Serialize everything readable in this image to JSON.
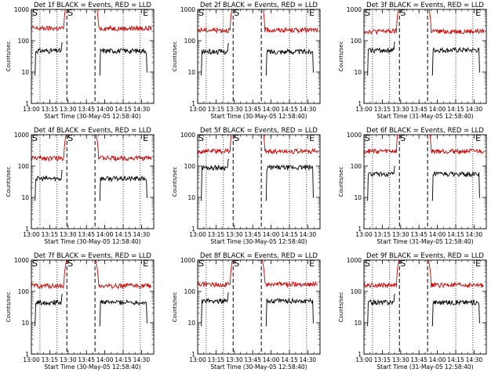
{
  "chart_data": {
    "type": "line",
    "layout": "3x3 grid",
    "xlabel_ticks": [
      "13:00",
      "13:15",
      "13:30",
      "13:45",
      "14:00",
      "14:15",
      "14:30"
    ],
    "x_range_minutes": [
      0,
      100
    ],
    "ylabel": "Counts/sec",
    "y_scale": "log",
    "y_range": [
      1,
      1000
    ],
    "y_ticks": [
      "1",
      "10",
      "100",
      "1000"
    ],
    "legend_note": "BLACK = Events, RED = LLD",
    "markers": {
      "start": "S",
      "end": "E"
    },
    "panels": [
      {
        "title": "Det 1f BLACK = Events, RED = LLD",
        "subtitle": "Start Time (30-May-05 12:58:40)",
        "start_min": 0,
        "end_min": 93,
        "lines_dotted_min": [
          7,
          21,
          75,
          89
        ],
        "lines_dashed_min": [
          29,
          52
        ],
        "series": [
          {
            "name": "Events",
            "color": "#000000",
            "level": 48,
            "t_on": 2.5,
            "t_off": 25.5,
            "t_on2": 55.5,
            "t_off2": 95
          },
          {
            "name": "LLD",
            "color": "#cc0000",
            "level": 250,
            "t_on": 0,
            "t_off": 29,
            "t_on2": 52,
            "t_off2": 98
          }
        ]
      },
      {
        "title": "Det 2f BLACK = Events, RED = LLD",
        "subtitle": "Start Time (30-May-05 12:58:40)",
        "start_min": 0,
        "end_min": 93,
        "lines_dotted_min": [
          7,
          21,
          75,
          89
        ],
        "lines_dashed_min": [
          29,
          52
        ],
        "series": [
          {
            "name": "Events",
            "color": "#000000",
            "level": 45,
            "t_on": 2.5,
            "t_off": 25.5,
            "t_on2": 55.5,
            "t_off2": 95
          },
          {
            "name": "LLD",
            "color": "#cc0000",
            "level": 220,
            "t_on": 0,
            "t_off": 29,
            "t_on2": 52,
            "t_off2": 98
          }
        ]
      },
      {
        "title": "Det 3f BLACK = Events, RED = LLD",
        "subtitle": "Start Time (31-May-05 12:58:40)",
        "start_min": 0,
        "end_min": 93,
        "lines_dotted_min": [
          7,
          21,
          75,
          89
        ],
        "lines_dashed_min": [
          29,
          52
        ],
        "series": [
          {
            "name": "Events",
            "color": "#000000",
            "level": 50,
            "t_on": 2.5,
            "t_off": 25.5,
            "t_on2": 55.5,
            "t_off2": 95
          },
          {
            "name": "LLD",
            "color": "#cc0000",
            "level": 200,
            "t_on": 0,
            "t_off": 29,
            "t_on2": 52,
            "t_off2": 98
          }
        ]
      },
      {
        "title": "Det 4f BLACK = Events, RED = LLD",
        "subtitle": "Start Time (30-May-05 12:58:40)",
        "start_min": 0,
        "end_min": 93,
        "lines_dotted_min": [
          7,
          21,
          75,
          89
        ],
        "lines_dashed_min": [
          29,
          52
        ],
        "series": [
          {
            "name": "Events",
            "color": "#000000",
            "level": 40,
            "t_on": 2.5,
            "t_off": 25.5,
            "t_on2": 55.5,
            "t_off2": 95
          },
          {
            "name": "LLD",
            "color": "#cc0000",
            "level": 180,
            "t_on": 0,
            "t_off": 29,
            "t_on2": 52,
            "t_off2": 98
          }
        ]
      },
      {
        "title": "Det 5f BLACK = Events, RED = LLD",
        "subtitle": "Start Time (30-May-05 12:58:40)",
        "start_min": 0,
        "end_min": 93,
        "lines_dotted_min": [
          7,
          21,
          75,
          89
        ],
        "lines_dashed_min": [
          29,
          52
        ],
        "series": [
          {
            "name": "Events",
            "color": "#000000",
            "level": 90,
            "t_on": 2.5,
            "t_off": 25.5,
            "t_on2": 55.5,
            "t_off2": 95
          },
          {
            "name": "LLD",
            "color": "#cc0000",
            "level": 300,
            "t_on": 0,
            "t_off": 29,
            "t_on2": 52,
            "t_off2": 98
          }
        ]
      },
      {
        "title": "Det 6f BLACK = Events, RED = LLD",
        "subtitle": "Start Time (31-May-05 12:58:40)",
        "start_min": 0,
        "end_min": 93,
        "lines_dotted_min": [
          7,
          21,
          75,
          89
        ],
        "lines_dashed_min": [
          29,
          52
        ],
        "series": [
          {
            "name": "Events",
            "color": "#000000",
            "level": 55,
            "t_on": 2.5,
            "t_off": 25.5,
            "t_on2": 55.5,
            "t_off2": 95
          },
          {
            "name": "LLD",
            "color": "#cc0000",
            "level": 300,
            "t_on": 0,
            "t_off": 29,
            "t_on2": 52,
            "t_off2": 98
          }
        ]
      },
      {
        "title": "Det 7f BLACK = Events, RED = LLD",
        "subtitle": "Start Time (30-May-05 12:58:40)",
        "start_min": 0,
        "end_min": 93,
        "lines_dotted_min": [
          7,
          21,
          75,
          89
        ],
        "lines_dashed_min": [
          29,
          52
        ],
        "series": [
          {
            "name": "Events",
            "color": "#000000",
            "level": 45,
            "t_on": 2.5,
            "t_off": 25.5,
            "t_on2": 55.5,
            "t_off2": 95
          },
          {
            "name": "LLD",
            "color": "#cc0000",
            "level": 150,
            "t_on": 0,
            "t_off": 29,
            "t_on2": 52,
            "t_off2": 98
          }
        ]
      },
      {
        "title": "Det 8f BLACK = Events, RED = LLD",
        "subtitle": "Start Time (30-May-05 12:58:40)",
        "start_min": 0,
        "end_min": 93,
        "lines_dotted_min": [
          7,
          21,
          75,
          89
        ],
        "lines_dashed_min": [
          29,
          52
        ],
        "series": [
          {
            "name": "Events",
            "color": "#000000",
            "level": 50,
            "t_on": 2.5,
            "t_off": 25.5,
            "t_on2": 55.5,
            "t_off2": 95
          },
          {
            "name": "LLD",
            "color": "#cc0000",
            "level": 170,
            "t_on": 0,
            "t_off": 29,
            "t_on2": 52,
            "t_off2": 98
          }
        ]
      },
      {
        "title": "Det 9f BLACK = Events, RED = LLD",
        "subtitle": "Start Time (31-May-05 12:58:40)",
        "start_min": 0,
        "end_min": 93,
        "lines_dotted_min": [
          7,
          21,
          75,
          89
        ],
        "lines_dashed_min": [
          29,
          52
        ],
        "series": [
          {
            "name": "Events",
            "color": "#000000",
            "level": 45,
            "t_on": 2.5,
            "t_off": 25.5,
            "t_on2": 55.5,
            "t_off2": 95
          },
          {
            "name": "LLD",
            "color": "#cc0000",
            "level": 160,
            "t_on": 0,
            "t_off": 29,
            "t_on2": 52,
            "t_off2": 98
          }
        ]
      }
    ]
  }
}
